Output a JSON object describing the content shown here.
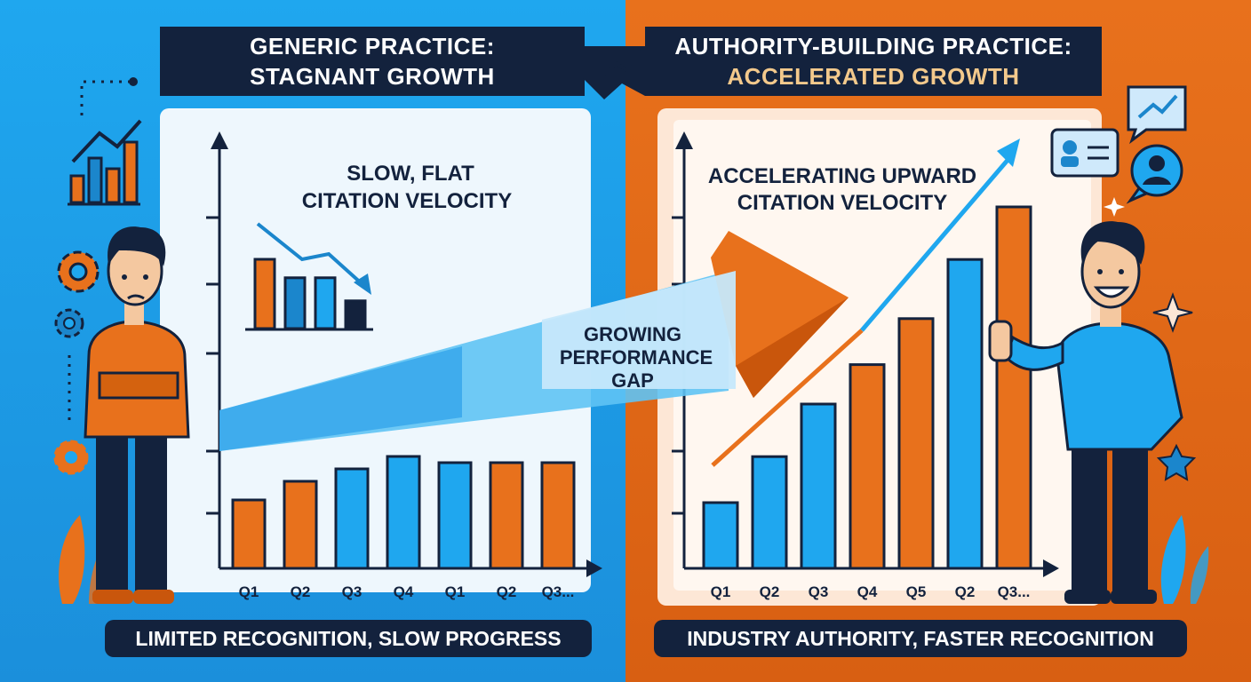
{
  "left": {
    "banner_line1": "GENERIC PRACTICE:",
    "banner_line2": "STAGNANT GROWTH",
    "chart_label_line1": "SLOW, FLAT",
    "chart_label_line2": "CITATION VELOCITY",
    "footer": "LIMITED RECOGNITION, SLOW PROGRESS",
    "colors": {
      "background": "#1fa7ef",
      "accent": "#e8711c"
    }
  },
  "right": {
    "banner_line1": "AUTHORITY-BUILDING PRACTICE:",
    "banner_line2": "ACCELERATED GROWTH",
    "chart_label_line1": "ACCELERATING UPWARD",
    "chart_label_line2": "CITATION VELOCITY",
    "footer": "INDUSTRY AUTHORITY, FASTER RECOGNITION",
    "colors": {
      "background": "#e8711c",
      "accent": "#1fa7ef"
    }
  },
  "gap_arrow": {
    "line1": "GROWING",
    "line2": "PERFORMANCE",
    "line3": "GAP"
  },
  "chart_data": [
    {
      "type": "bar",
      "categories": [
        "Q1",
        "Q2",
        "Q3",
        "Q4",
        "Q1",
        "Q2",
        "Q3..."
      ],
      "values": [
        1.1,
        1.4,
        1.6,
        1.8,
        1.7,
        1.7,
        1.7
      ],
      "colors": [
        "#e8711c",
        "#e8711c",
        "#1fa7ef",
        "#1fa7ef",
        "#1fa7ef",
        "#e8711c",
        "#e8711c"
      ]
    },
    {
      "type": "bar",
      "categories": [
        "Q1",
        "Q2",
        "Q3",
        "Q4",
        "Q5",
        "Q2",
        "Q3..."
      ],
      "values": [
        1.0,
        1.7,
        2.5,
        3.1,
        3.8,
        4.7,
        5.5
      ],
      "colors": [
        "#1fa7ef",
        "#1fa7ef",
        "#1fa7ef",
        "#e8711c",
        "#e8711c",
        "#1fa7ef",
        "#e8711c"
      ]
    },
    {
      "type": "bar",
      "values": [
        1.5,
        1.1,
        1.1,
        0.6
      ],
      "colors": [
        "#e8711c",
        "#1b86cc",
        "#1fa7ef",
        "#13223d"
      ]
    }
  ]
}
